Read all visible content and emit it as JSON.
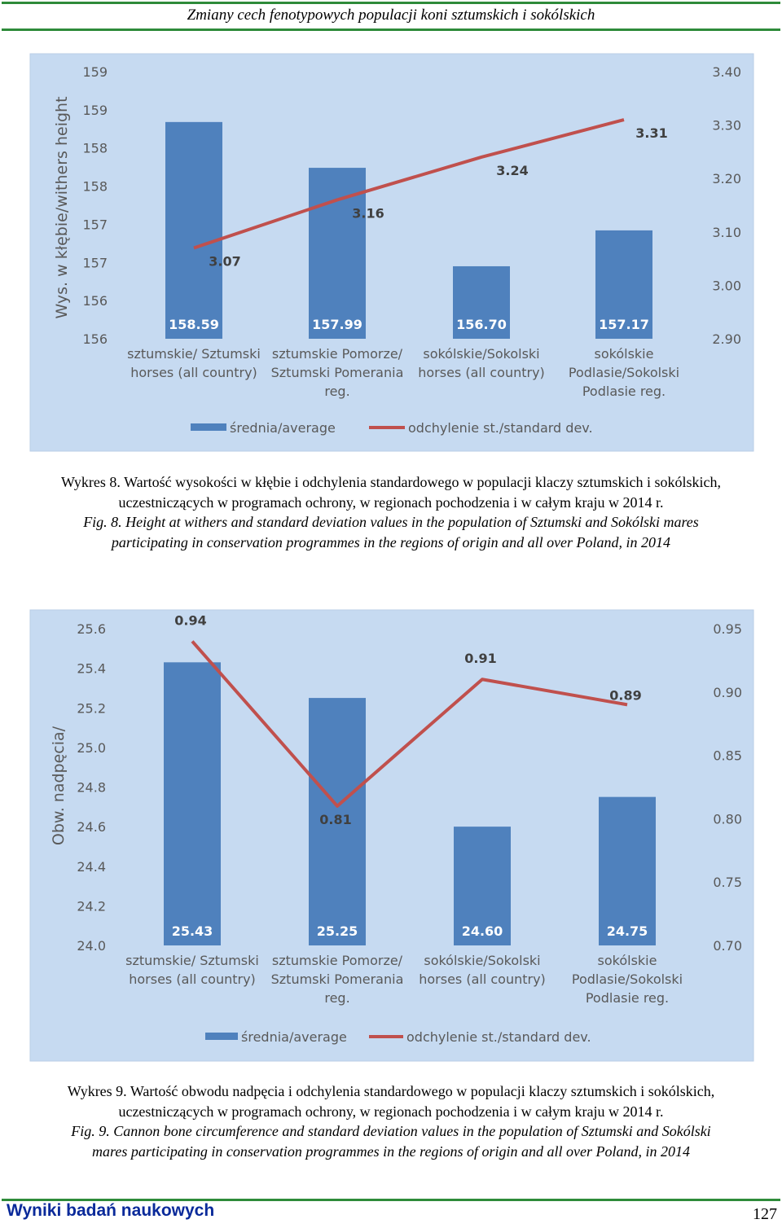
{
  "header": {
    "title": "Zmiany  cech  fenotypowych  populacji  koni  sztumskich  i  sokólskich"
  },
  "charts": [
    {
      "caption_pl": [
        "Wykres 8. Wartość wysokości w kłębie i odchylenia standardowego w populacji klaczy sztumskich i sokólskich,",
        "uczestniczących w programach ochrony, w regionach pochodzenia i w całym kraju w 2014 r."
      ],
      "caption_en": [
        "Fig. 8. Height at withers and standard deviation values in the population of Sztumski and Sokólski mares",
        "participating in conservation programmes in the regions of origin and all over Poland, in 2014"
      ]
    },
    {
      "caption_pl": [
        "Wykres 9. Wartość obwodu nadpęcia i odchylenia standardowego w populacji klaczy sztumskich i sokólskich,",
        "uczestniczących w programach ochrony, w regionach pochodzenia i w całym kraju w 2014 r."
      ],
      "caption_en": [
        "Fig. 9. Cannon bone circumference and standard deviation values in the population of Sztumski and Sokólski",
        "mares participating in conservation programmes in the regions of origin and all over Poland, in 2014"
      ]
    }
  ],
  "chart_data": [
    {
      "type": "bar",
      "categories": [
        [
          "sztumskie/ Sztumski",
          "horses (all country)"
        ],
        [
          "sztumskie Pomorze/",
          "Sztumski Pomerania",
          "reg."
        ],
        [
          "sokólskie/Sokolski",
          "horses (all country)"
        ],
        [
          "sokólskie",
          "Podlasie/Sokolski",
          "Podlasie reg."
        ]
      ],
      "ylabel": "Wys. w kłębie/withers height",
      "y2label": "",
      "yticks": [
        "156",
        "156",
        "157",
        "157",
        "158",
        "158",
        "159",
        "159"
      ],
      "ylim": [
        155.75,
        159.25
      ],
      "y2ticks": [
        "2.90",
        "3.00",
        "3.10",
        "3.20",
        "3.30",
        "3.40"
      ],
      "y2lim": [
        2.9,
        3.4
      ],
      "series": [
        {
          "name": "średnia/average",
          "kind": "bar",
          "axis": "left",
          "values": [
            158.59,
            157.99,
            156.7,
            157.17
          ],
          "labels": [
            "158.59",
            "157.99",
            "156.70",
            "157.17"
          ],
          "color": "#4f81bd"
        },
        {
          "name": "odchylenie st./standard dev.",
          "kind": "line",
          "axis": "right",
          "values": [
            3.07,
            3.16,
            3.24,
            3.31
          ],
          "labels": [
            "3.07",
            "3.16",
            "3.24",
            "3.31"
          ],
          "color": "#c0504d"
        }
      ],
      "legend": "bottom",
      "grid": false,
      "background": "#c6daf1"
    },
    {
      "type": "bar",
      "categories": [
        [
          "sztumskie/ Sztumski",
          "horses (all country)"
        ],
        [
          "sztumskie Pomorze/",
          "Sztumski Pomerania",
          "reg."
        ],
        [
          "sokólskie/Sokolski",
          "horses (all country)"
        ],
        [
          "sokólskie",
          "Podlasie/Sokolski",
          "Podlasie reg."
        ]
      ],
      "ylabel": "Obw.  nadpęcia/",
      "y2label": "",
      "yticks": [
        "24.0",
        "24.2",
        "24.4",
        "24.6",
        "24.8",
        "25.0",
        "25.2",
        "25.4",
        "25.6"
      ],
      "ylim": [
        24.0,
        25.6
      ],
      "y2ticks": [
        "0.70",
        "0.75",
        "0.80",
        "0.85",
        "0.90",
        "0.95"
      ],
      "y2lim": [
        0.7,
        0.95
      ],
      "series": [
        {
          "name": "średnia/average",
          "kind": "bar",
          "axis": "left",
          "values": [
            25.43,
            25.25,
            24.6,
            24.75
          ],
          "labels": [
            "25.43",
            "25.25",
            "24.60",
            "24.75"
          ],
          "color": "#4f81bd"
        },
        {
          "name": "odchylenie st./standard dev.",
          "kind": "line",
          "axis": "right",
          "values": [
            0.94,
            0.81,
            0.91,
            0.89
          ],
          "labels": [
            "0.94",
            "0.81",
            "0.91",
            "0.89"
          ],
          "color": "#c0504d"
        }
      ],
      "legend": "bottom",
      "grid": false,
      "background": "#c6daf1"
    }
  ],
  "footer": {
    "section": "Wyniki  badań  naukowych",
    "page_number": "127"
  }
}
